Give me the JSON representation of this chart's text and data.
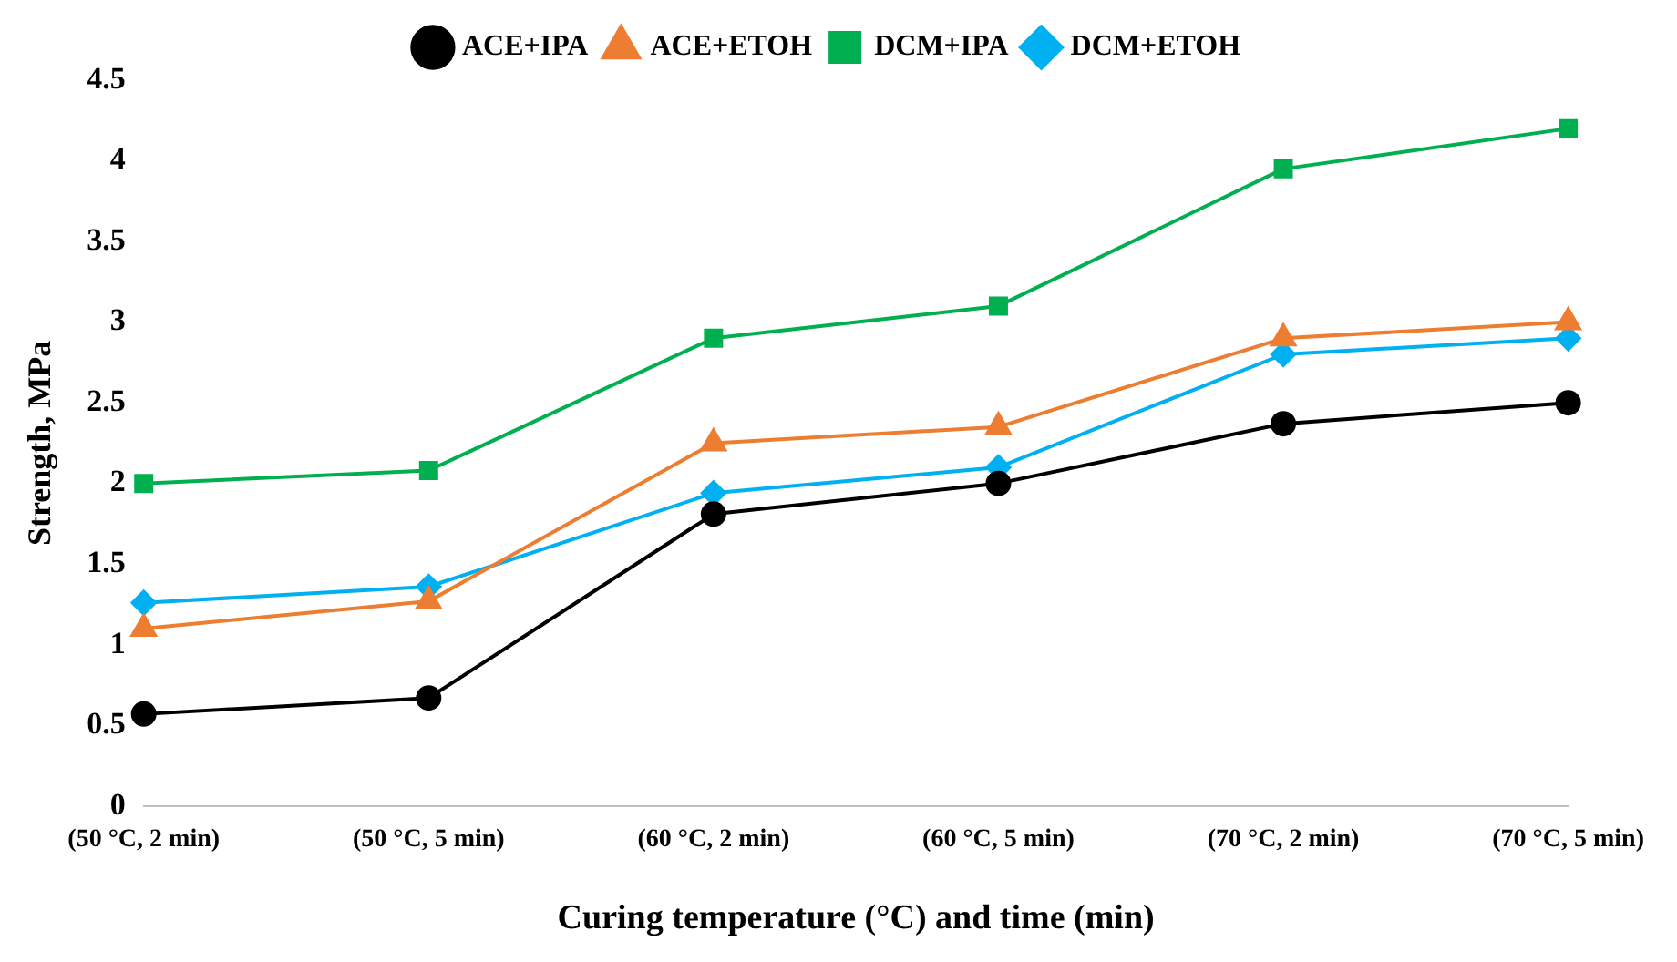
{
  "chart_data": {
    "type": "line",
    "xlabel": "Curing temperature (°C) and time (min)",
    "ylabel": "Strength, MPa",
    "categories": [
      "(50 °C, 2 min)",
      "(50 °C, 5 min)",
      "(60 °C, 2 min)",
      "(60 °C, 5 min)",
      "(70 °C, 2 min)",
      "(70 °C, 5 min)"
    ],
    "series": [
      {
        "name": "ACE+IPA",
        "color": "#000000",
        "marker": "circle",
        "values": [
          0.57,
          0.67,
          1.81,
          2.0,
          2.37,
          2.5
        ]
      },
      {
        "name": "ACE+ETOH",
        "color": "#ed7d31",
        "marker": "triangle",
        "values": [
          1.1,
          1.27,
          2.25,
          2.35,
          2.9,
          3.0
        ]
      },
      {
        "name": "DCM+IPA",
        "color": "#00b050",
        "marker": "square",
        "values": [
          2.0,
          2.08,
          2.9,
          3.1,
          3.95,
          4.2
        ]
      },
      {
        "name": "DCM+ETOH",
        "color": "#00b0f0",
        "marker": "diamond",
        "values": [
          1.26,
          1.36,
          1.94,
          2.1,
          2.8,
          2.9
        ]
      }
    ],
    "ylim": [
      0,
      4.5
    ],
    "yticks": [
      0,
      0.5,
      1,
      1.5,
      2,
      2.5,
      3,
      3.5,
      4,
      4.5
    ],
    "grid": false,
    "legend": "top",
    "line_style": "solid"
  }
}
